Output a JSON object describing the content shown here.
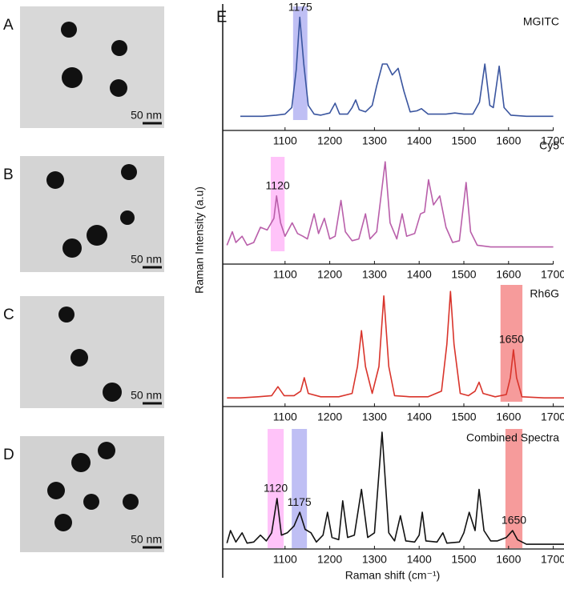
{
  "figure_label": "E",
  "ylabel": "Raman Intensity (a.u)",
  "xlabel": "Raman shift (cm⁻¹)",
  "images": [
    {
      "label": "A",
      "scale_bar": "50 nm"
    },
    {
      "label": "B",
      "scale_bar": "50 nm"
    },
    {
      "label": "C",
      "scale_bar": "50 nm"
    },
    {
      "label": "D",
      "scale_bar": "50 nm"
    }
  ],
  "chart_data": [
    {
      "type": "line",
      "title": "MGITC",
      "color": "#3a559f",
      "xlim": [
        970,
        1700
      ],
      "ylim": [
        0,
        100
      ],
      "xticks": [
        1100,
        1200,
        1300,
        1400,
        1500,
        1600,
        1700
      ],
      "bands": [
        {
          "x": [
            1118,
            1150
          ],
          "color": "#b4b4f2",
          "label": "1175"
        }
      ],
      "x": [
        1000,
        1050,
        1080,
        1100,
        1115,
        1125,
        1133,
        1142,
        1152,
        1165,
        1180,
        1200,
        1212,
        1222,
        1240,
        1250,
        1258,
        1266,
        1280,
        1295,
        1305,
        1318,
        1328,
        1340,
        1353,
        1366,
        1380,
        1395,
        1405,
        1420,
        1440,
        1460,
        1480,
        1500,
        1520,
        1535,
        1547,
        1558,
        1566,
        1579,
        1590,
        1605,
        1640,
        1670,
        1700
      ],
      "values": [
        2,
        2,
        3,
        4,
        10,
        45,
        93,
        50,
        12,
        4,
        3,
        5,
        14,
        4,
        4,
        10,
        17,
        8,
        6,
        12,
        30,
        50,
        50,
        40,
        46,
        25,
        6,
        7,
        9,
        4,
        4,
        4,
        5,
        4,
        4,
        15,
        50,
        12,
        10,
        48,
        10,
        3,
        2,
        2,
        2
      ]
    },
    {
      "type": "line",
      "title": "Cy5",
      "color": "#b95faa",
      "xlim": [
        970,
        1700
      ],
      "ylim": [
        0,
        100
      ],
      "xticks": [
        1100,
        1200,
        1300,
        1400,
        1500,
        1600,
        1700
      ],
      "bands": [
        {
          "x": [
            1068,
            1099
          ],
          "color": "#ffb8f8",
          "label": "1120"
        }
      ],
      "x": [
        970,
        982,
        990,
        1004,
        1015,
        1030,
        1045,
        1060,
        1075,
        1081,
        1090,
        1100,
        1116,
        1128,
        1140,
        1150,
        1165,
        1175,
        1188,
        1200,
        1212,
        1225,
        1235,
        1250,
        1265,
        1280,
        1290,
        1305,
        1324,
        1335,
        1350,
        1362,
        1372,
        1390,
        1403,
        1412,
        1421,
        1432,
        1446,
        1460,
        1475,
        1490,
        1505,
        1515,
        1530,
        1560,
        1600,
        1650,
        1700
      ],
      "values": [
        5,
        20,
        8,
        15,
        5,
        8,
        25,
        22,
        35,
        60,
        30,
        15,
        30,
        18,
        15,
        12,
        40,
        18,
        35,
        12,
        15,
        55,
        20,
        10,
        12,
        40,
        12,
        20,
        98,
        30,
        12,
        40,
        15,
        18,
        40,
        42,
        78,
        50,
        60,
        25,
        8,
        10,
        75,
        20,
        5,
        3,
        3,
        3,
        3
      ]
    },
    {
      "type": "line",
      "title": "Rh6G",
      "color": "#d9342b",
      "xlim": [
        970,
        1740
      ],
      "ylim": [
        0,
        100
      ],
      "xticks": [
        1100,
        1200,
        1300,
        1400,
        1500,
        1600,
        1700
      ],
      "bands": [
        {
          "x": [
            1582,
            1631
          ],
          "color": "#f58a8a",
          "label": "1650"
        }
      ],
      "x": [
        970,
        1000,
        1040,
        1070,
        1084,
        1098,
        1120,
        1135,
        1143,
        1152,
        1180,
        1220,
        1250,
        1262,
        1271,
        1280,
        1295,
        1310,
        1321,
        1332,
        1345,
        1380,
        1420,
        1450,
        1462,
        1470,
        1478,
        1492,
        1510,
        1525,
        1534,
        1543,
        1570,
        1595,
        1604,
        1611,
        1618,
        1630,
        1680,
        1740
      ],
      "values": [
        2,
        2,
        3,
        4,
        12,
        4,
        4,
        8,
        20,
        6,
        3,
        3,
        6,
        30,
        62,
        30,
        6,
        30,
        93,
        30,
        4,
        3,
        3,
        8,
        50,
        97,
        50,
        6,
        4,
        8,
        16,
        6,
        3,
        5,
        20,
        45,
        20,
        3,
        2,
        2
      ]
    },
    {
      "type": "line",
      "title": "Combined Spectra",
      "color": "#111111",
      "xlim": [
        970,
        1740
      ],
      "ylim": [
        0,
        100
      ],
      "xticks": [
        1100,
        1200,
        1300,
        1400,
        1500,
        1600,
        1700
      ],
      "bands": [
        {
          "x": [
            1061,
            1097
          ],
          "color": "#ffb8f8",
          "label": "1120"
        },
        {
          "x": [
            1115,
            1149
          ],
          "color": "#b4b4f2",
          "label": "1175"
        },
        {
          "x": [
            1593,
            1631
          ],
          "color": "#f58a8a",
          "label": "1650"
        }
      ],
      "x": [
        970,
        978,
        990,
        1004,
        1015,
        1030,
        1045,
        1058,
        1070,
        1082,
        1092,
        1105,
        1120,
        1133,
        1145,
        1158,
        1170,
        1185,
        1195,
        1205,
        1220,
        1229,
        1240,
        1255,
        1271,
        1285,
        1300,
        1317,
        1332,
        1345,
        1358,
        1370,
        1390,
        1400,
        1407,
        1415,
        1440,
        1453,
        1462,
        1490,
        1500,
        1512,
        1525,
        1534,
        1545,
        1560,
        1575,
        1595,
        1609,
        1620,
        1640,
        1700,
        1740
      ],
      "values": [
        3,
        14,
        4,
        12,
        3,
        4,
        10,
        5,
        12,
        42,
        10,
        12,
        18,
        30,
        15,
        12,
        4,
        10,
        30,
        8,
        6,
        40,
        8,
        10,
        50,
        8,
        12,
        100,
        12,
        5,
        27,
        5,
        4,
        10,
        30,
        5,
        4,
        12,
        3,
        4,
        12,
        30,
        14,
        50,
        14,
        5,
        5,
        8,
        14,
        6,
        2,
        2,
        2
      ]
    }
  ]
}
